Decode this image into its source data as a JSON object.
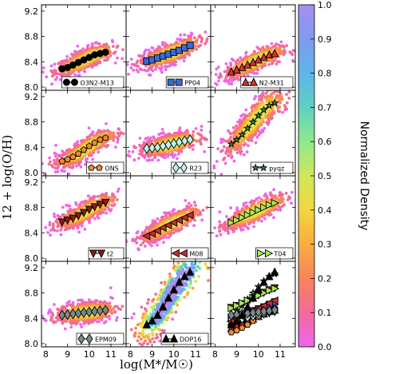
{
  "chart_data": {
    "type": "scatter",
    "xlabel": "log(M*/M☉)",
    "ylabel": "12 + log(O/H)",
    "xlim": [
      7.8,
      11.7
    ],
    "ylim": [
      7.95,
      9.3
    ],
    "xticks": [
      "8",
      "9",
      "10",
      "11"
    ],
    "yticks": [
      "8.0",
      "8.4",
      "8.8",
      "9.2"
    ],
    "x": [
      8.75,
      9.0,
      9.25,
      9.5,
      9.75,
      10.0,
      10.25,
      10.5,
      10.75
    ],
    "colorbar": {
      "label": "Normalized Density",
      "ticks": [
        "0.0",
        "0.1",
        "0.2",
        "0.3",
        "0.4",
        "0.5",
        "0.6",
        "0.7",
        "0.8",
        "0.9",
        "1.0"
      ],
      "colors": [
        "#ee66ee",
        "#f26a9c",
        "#f8845a",
        "#f8ad3e",
        "#f2d640",
        "#cfe85a",
        "#8fe88a",
        "#5fd0c2",
        "#5fb4e8",
        "#7f9af0",
        "#a58ff0"
      ]
    },
    "panels": [
      {
        "label": "O3N2-M13",
        "marker": "circle",
        "color": "#000000",
        "line": "#000000",
        "values": [
          8.29,
          8.31,
          8.35,
          8.39,
          8.43,
          8.47,
          8.51,
          8.53,
          8.55
        ]
      },
      {
        "label": "PP04",
        "marker": "square",
        "color": "#3a6ad8",
        "line": "#000000",
        "values": [
          8.41,
          8.43,
          8.46,
          8.49,
          8.52,
          8.55,
          8.58,
          8.62,
          8.66
        ]
      },
      {
        "label": "N2-M31",
        "marker": "triangle",
        "color": "#d83030",
        "line": "#000000",
        "values": [
          8.24,
          8.27,
          8.31,
          8.35,
          8.39,
          8.43,
          8.47,
          8.51,
          8.53
        ]
      },
      {
        "label": "ONS",
        "marker": "pentagon",
        "color": "#f08a32",
        "line": "#000000",
        "values": [
          8.18,
          8.21,
          8.25,
          8.3,
          8.36,
          8.42,
          8.47,
          8.52,
          8.55
        ]
      },
      {
        "label": "R23",
        "marker": "diamond",
        "color": "#bff0f0",
        "line": "#000000",
        "values": [
          8.38,
          8.39,
          8.4,
          8.42,
          8.44,
          8.46,
          8.48,
          8.5,
          8.52
        ]
      },
      {
        "label": "pyqz",
        "marker": "star",
        "color": "#2e8b3a",
        "line": "#000000",
        "values": [
          8.45,
          8.52,
          8.6,
          8.7,
          8.8,
          8.9,
          8.99,
          9.06,
          9.1
        ]
      },
      {
        "label": "t2",
        "marker": "tri-down",
        "color": "#8b1a1a",
        "line": "#000000",
        "values": [
          8.57,
          8.6,
          8.63,
          8.67,
          8.72,
          8.77,
          8.81,
          8.85,
          8.88
        ]
      },
      {
        "label": "M08",
        "marker": "tri-left",
        "color": "#c82a30",
        "line": "#000000",
        "values": [
          8.35,
          8.39,
          8.43,
          8.48,
          8.52,
          8.56,
          8.6,
          8.64,
          8.68
        ]
      },
      {
        "label": "T04",
        "marker": "tri-right",
        "color": "#a8e85a",
        "line": "#000000",
        "values": [
          8.56,
          8.6,
          8.64,
          8.68,
          8.72,
          8.76,
          8.8,
          8.84,
          8.87
        ]
      },
      {
        "label": "EPM09",
        "marker": "diamond",
        "color": "#7a8a8a",
        "line": "#000000",
        "values": [
          8.45,
          8.46,
          8.47,
          8.48,
          8.49,
          8.5,
          8.51,
          8.52,
          8.53
        ]
      },
      {
        "label": "DOP16",
        "marker": "triangle",
        "color": "#000000",
        "line": "#000000",
        "values": [
          8.3,
          8.36,
          8.45,
          8.58,
          8.72,
          8.85,
          8.97,
          9.06,
          9.13
        ]
      },
      {
        "label": "",
        "marker": "combined",
        "color": "#000000",
        "line": "#000000",
        "values": []
      }
    ]
  }
}
